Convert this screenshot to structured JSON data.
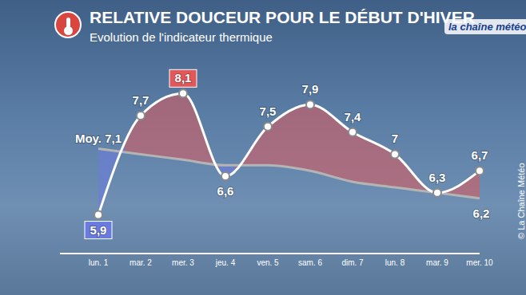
{
  "chart_data": {
    "type": "line",
    "title": "RELATIVE DOUCEUR POUR LE DÉBUT D'HIVER",
    "subtitle": "Evolution de l'indicateur thermique",
    "logo": "la chaîne météo",
    "credit": "© La Chaîne Météo",
    "categories": [
      "lun. 1",
      "mar. 2",
      "mer. 3",
      "jeu. 4",
      "ven. 5",
      "sam. 6",
      "dim. 7",
      "lun. 8",
      "mar. 9",
      "mer. 10"
    ],
    "series": [
      {
        "color": "#ffffff",
        "marker": "circle",
        "values": [
          5.9,
          7.7,
          8.1,
          6.6,
          7.5,
          7.9,
          7.4,
          7.0,
          6.3,
          6.7
        ],
        "value_labels": [
          "5,9",
          "7,7",
          "8,1",
          "6,6",
          "7,5",
          "7,9",
          "7,4",
          "7",
          "6,3",
          "6,7"
        ]
      },
      {
        "color": "#b4b4b4",
        "values": [
          7.1,
          7.0,
          6.9,
          6.8,
          6.8,
          6.7,
          6.5,
          6.4,
          6.3,
          6.2
        ],
        "value_labels": [
          "Moy. 7,1",
          null,
          null,
          null,
          null,
          null,
          null,
          null,
          null,
          "6,2"
        ]
      }
    ],
    "ylim": [
      5.2,
      9
    ],
    "tick_labels": "x",
    "data_labels": true
  }
}
